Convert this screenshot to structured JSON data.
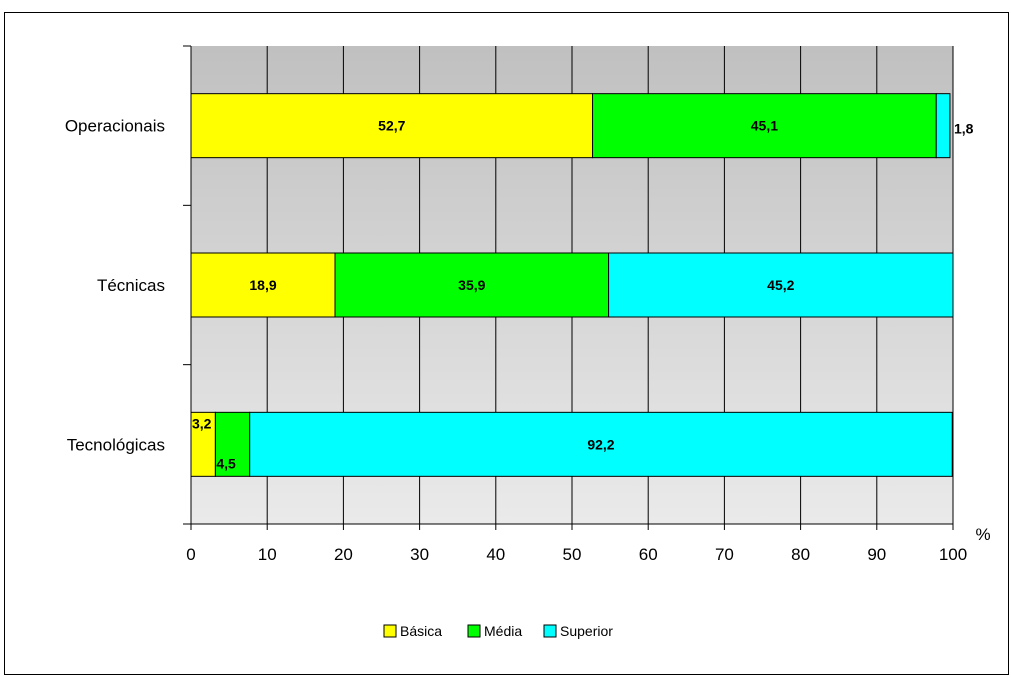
{
  "chart_data": {
    "type": "bar",
    "orientation": "horizontal",
    "stacked": true,
    "categories": [
      "Operacionais",
      "Técnicas",
      "Tecnológicas"
    ],
    "series": [
      {
        "name": "Básica",
        "values": [
          52.7,
          18.9,
          3.2
        ],
        "labels": [
          "52,7",
          "18,9",
          "3,2"
        ],
        "color": "#ffff00"
      },
      {
        "name": "Média",
        "values": [
          45.1,
          35.9,
          4.5
        ],
        "labels": [
          "45,1",
          "35,9",
          "4,5"
        ],
        "color": "#00ff00"
      },
      {
        "name": "Superior",
        "values": [
          1.8,
          45.2,
          92.2
        ],
        "labels": [
          "1,8",
          "45,2",
          "92,2"
        ],
        "color": "#00ffff"
      }
    ],
    "xlim": [
      0,
      100
    ],
    "xticks": [
      "0",
      "10",
      "20",
      "30",
      "40",
      "50",
      "60",
      "70",
      "80",
      "90",
      "100"
    ],
    "xlabel": "%",
    "grid": true,
    "legend_position": "bottom"
  }
}
